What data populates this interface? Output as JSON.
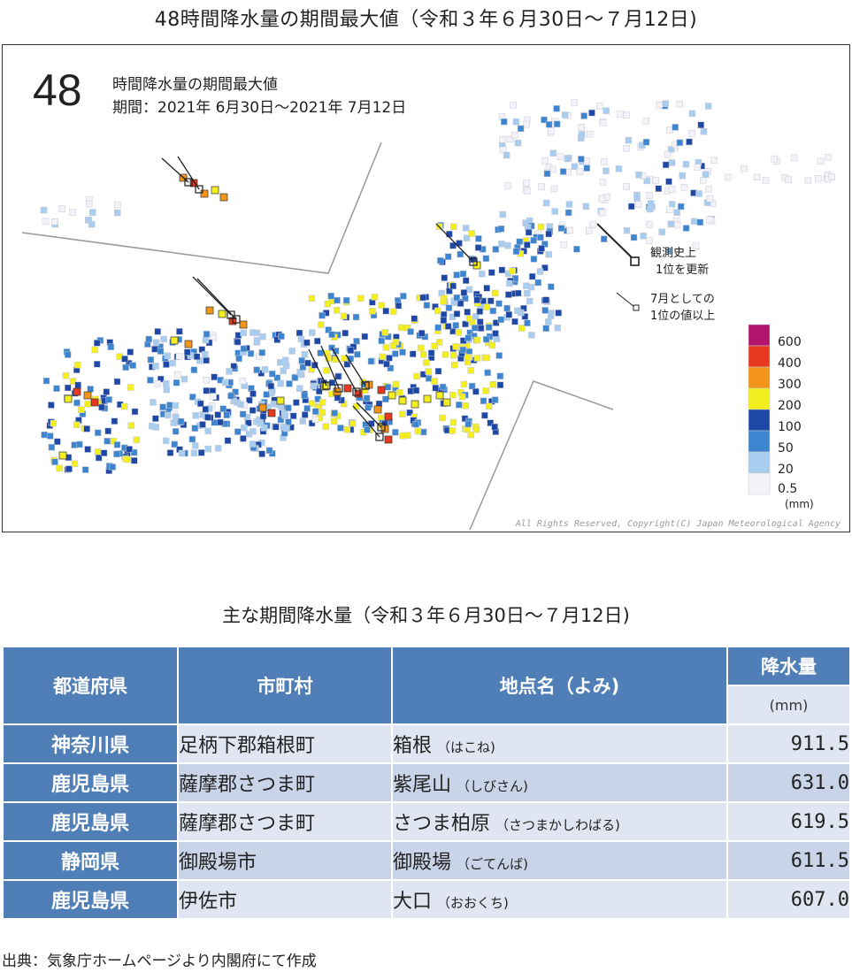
{
  "figure_title": "48時間降水量の期間最大値（令和３年６月30日～７月12日)",
  "map": {
    "big_number": "48",
    "title": "時間降水量の期間最大値",
    "period": "期間：2021年 6月30日～2021年 7月12日",
    "marker_legend": {
      "record_label_1": "観測史上",
      "record_label_2": "1位を更新",
      "july_label_1": "7月としての",
      "july_label_2": "1位の値以上"
    },
    "scale": {
      "labels": [
        "600",
        "400",
        "300",
        "200",
        "100",
        "50",
        "20",
        "0.5"
      ],
      "unit": "(mm)",
      "colors": [
        "#b0146e",
        "#e8381f",
        "#f4951b",
        "#f2ee20",
        "#1e48a6",
        "#3d86cf",
        "#a9cdee",
        "#f2f2f8"
      ]
    },
    "copyright": "All Rights Reserved, Copyright(C) Japan Meteorological Agency"
  },
  "table": {
    "title": "主な期間降水量（令和３年６月30日～７月12日)",
    "headers": {
      "prefecture": "都道府県",
      "city": "市町村",
      "station": "地点名（よみ)",
      "rain": "降水量",
      "unit": "(mm)"
    },
    "rows": [
      {
        "prefecture": "神奈川県",
        "city": "足柄下郡箱根町",
        "station": "箱根",
        "yomi": "（はこね)",
        "value": "911.5"
      },
      {
        "prefecture": "鹿児島県",
        "city": "薩摩郡さつま町",
        "station": "紫尾山",
        "yomi": "（しびさん)",
        "value": "631.0"
      },
      {
        "prefecture": "鹿児島県",
        "city": "薩摩郡さつま町",
        "station": "さつま柏原",
        "yomi": "（さつまかしわばる)",
        "value": "619.5"
      },
      {
        "prefecture": "静岡県",
        "city": "御殿場市",
        "station": "御殿場",
        "yomi": "（ごてんば)",
        "value": "611.5"
      },
      {
        "prefecture": "鹿児島県",
        "city": "伊佐市",
        "station": "大口",
        "yomi": "（おおくち)",
        "value": "607.0"
      }
    ]
  },
  "source": "出典：気象庁ホームページより内閣府にて作成"
}
